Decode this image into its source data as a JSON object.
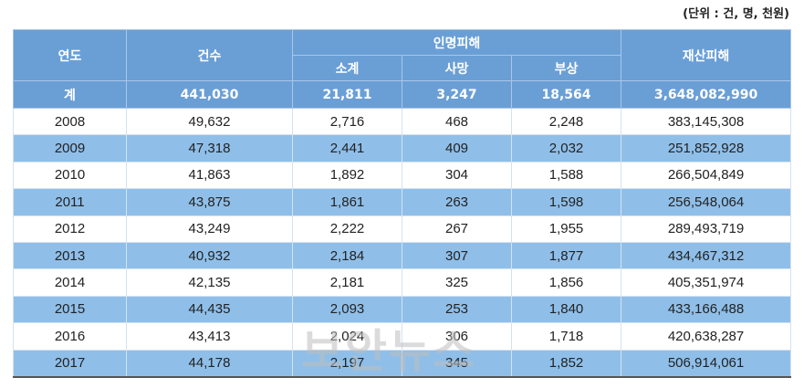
{
  "unit_note": "(단위 : 건, 명, 천원)",
  "table": {
    "header_top": [
      "연도",
      "건수",
      "인명피해",
      "재산피해"
    ],
    "header_sub": [
      "소계",
      "사망",
      "부상"
    ],
    "total": [
      "계",
      "441,030",
      "21,811",
      "3,247",
      "18,564",
      "3,648,082,990"
    ],
    "rows": [
      [
        "2008",
        "49,632",
        "2,716",
        "468",
        "2,248",
        "383,145,308"
      ],
      [
        "2009",
        "47,318",
        "2,441",
        "409",
        "2,032",
        "251,852,928"
      ],
      [
        "2010",
        "41,863",
        "1,892",
        "304",
        "1,588",
        "266,504,849"
      ],
      [
        "2011",
        "43,875",
        "1,861",
        "263",
        "1,598",
        "256,548,064"
      ],
      [
        "2012",
        "43,249",
        "2,222",
        "267",
        "1,955",
        "289,493,719"
      ],
      [
        "2013",
        "40,932",
        "2,184",
        "307",
        "1,877",
        "434,467,312"
      ],
      [
        "2014",
        "42,135",
        "2,181",
        "325",
        "1,856",
        "405,351,974"
      ],
      [
        "2015",
        "44,435",
        "2,093",
        "253",
        "1,840",
        "433,166,488"
      ],
      [
        "2016",
        "43,413",
        "2,024",
        "306",
        "1,718",
        "420,638,287"
      ],
      [
        "2017",
        "44,178",
        "2,197",
        "345",
        "1,852",
        "506,914,061"
      ]
    ]
  },
  "watermark": "보안뉴스"
}
